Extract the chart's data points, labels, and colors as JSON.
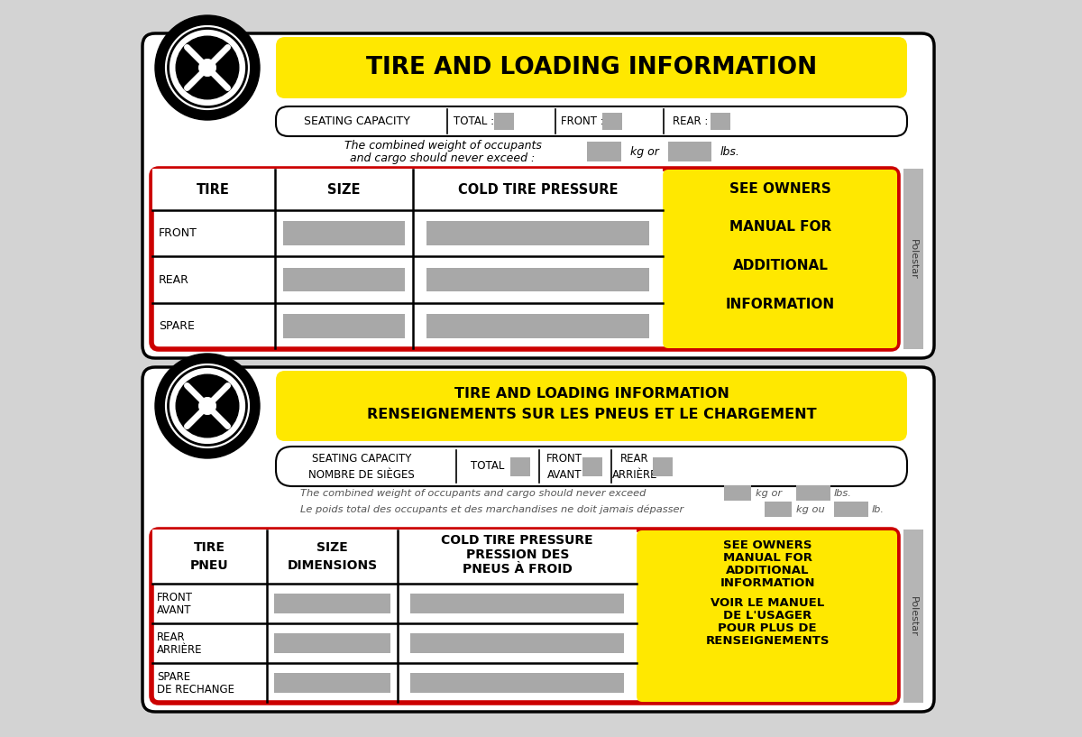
{
  "bg_color": "#d3d3d3",
  "yellow": "#FFE800",
  "red": "#cc0000",
  "gray_box": "#a8a8a8",
  "dark_gray": "#555555",
  "black": "#000000",
  "white": "#ffffff",
  "label1": {
    "title": "TIRE AND LOADING INFORMATION",
    "seating_cap": "SEATING CAPACITY",
    "total": "TOTAL :",
    "front": "FRONT :",
    "rear": "REAR :",
    "weight1": "The combined weight of occupants",
    "weight2": "and cargo should never exceed :",
    "kg": "kg or",
    "lbs": "lbs.",
    "h1": "TIRE",
    "h2": "SIZE",
    "h3": "COLD TIRE PRESSURE",
    "h4a": "SEE OWNERS",
    "h4b": "MANUAL FOR",
    "h4c": "ADDITIONAL",
    "h4d": "INFORMATION",
    "rows": [
      "FRONT",
      "REAR",
      "SPARE"
    ],
    "polestar": "Polestar"
  },
  "label2": {
    "title1": "TIRE AND LOADING INFORMATION",
    "title2": "RENSEIGNEMENTS SUR LES PNEUS ET LE CHARGEMENT",
    "seating1": "SEATING CAPACITY",
    "seating2": "NOMBRE DE SIÈGES",
    "total": "TOTAL",
    "front1": "FRONT",
    "front2": "AVANT",
    "rear1": "REAR",
    "rear2": "ARRIÈRE",
    "weight1en": "The combined weight of occupants and cargo should never exceed",
    "weight1fr": "Le poids total des occupants et des marchandises ne doit jamais dépasser",
    "kg_en": "kg or",
    "lbs_en": "lbs.",
    "kg_fr": "kg ou",
    "lb_fr": "lb.",
    "h1a": "TIRE",
    "h1b": "PNEU",
    "h2a": "SIZE",
    "h2b": "DIMENSIONS",
    "h3a": "COLD TIRE PRESSURE",
    "h3b": "PRESSION DES",
    "h3c": "PNEUS À FROID",
    "h4a": "SEE OWNERS",
    "h4b": "MANUAL FOR",
    "h4c": "ADDITIONAL",
    "h4d": "INFORMATION",
    "h4e": "VOIR LE MANUEL",
    "h4f": "DE L'USAGER",
    "h4g": "POUR PLUS DE",
    "h4h": "RENSEIGNEMENTS",
    "rows1": [
      "FRONT",
      "REAR",
      "SPARE"
    ],
    "rows2": [
      "AVANT",
      "ARRIÈRE",
      "DE RECHANGE"
    ],
    "polestar": "Polestar"
  }
}
